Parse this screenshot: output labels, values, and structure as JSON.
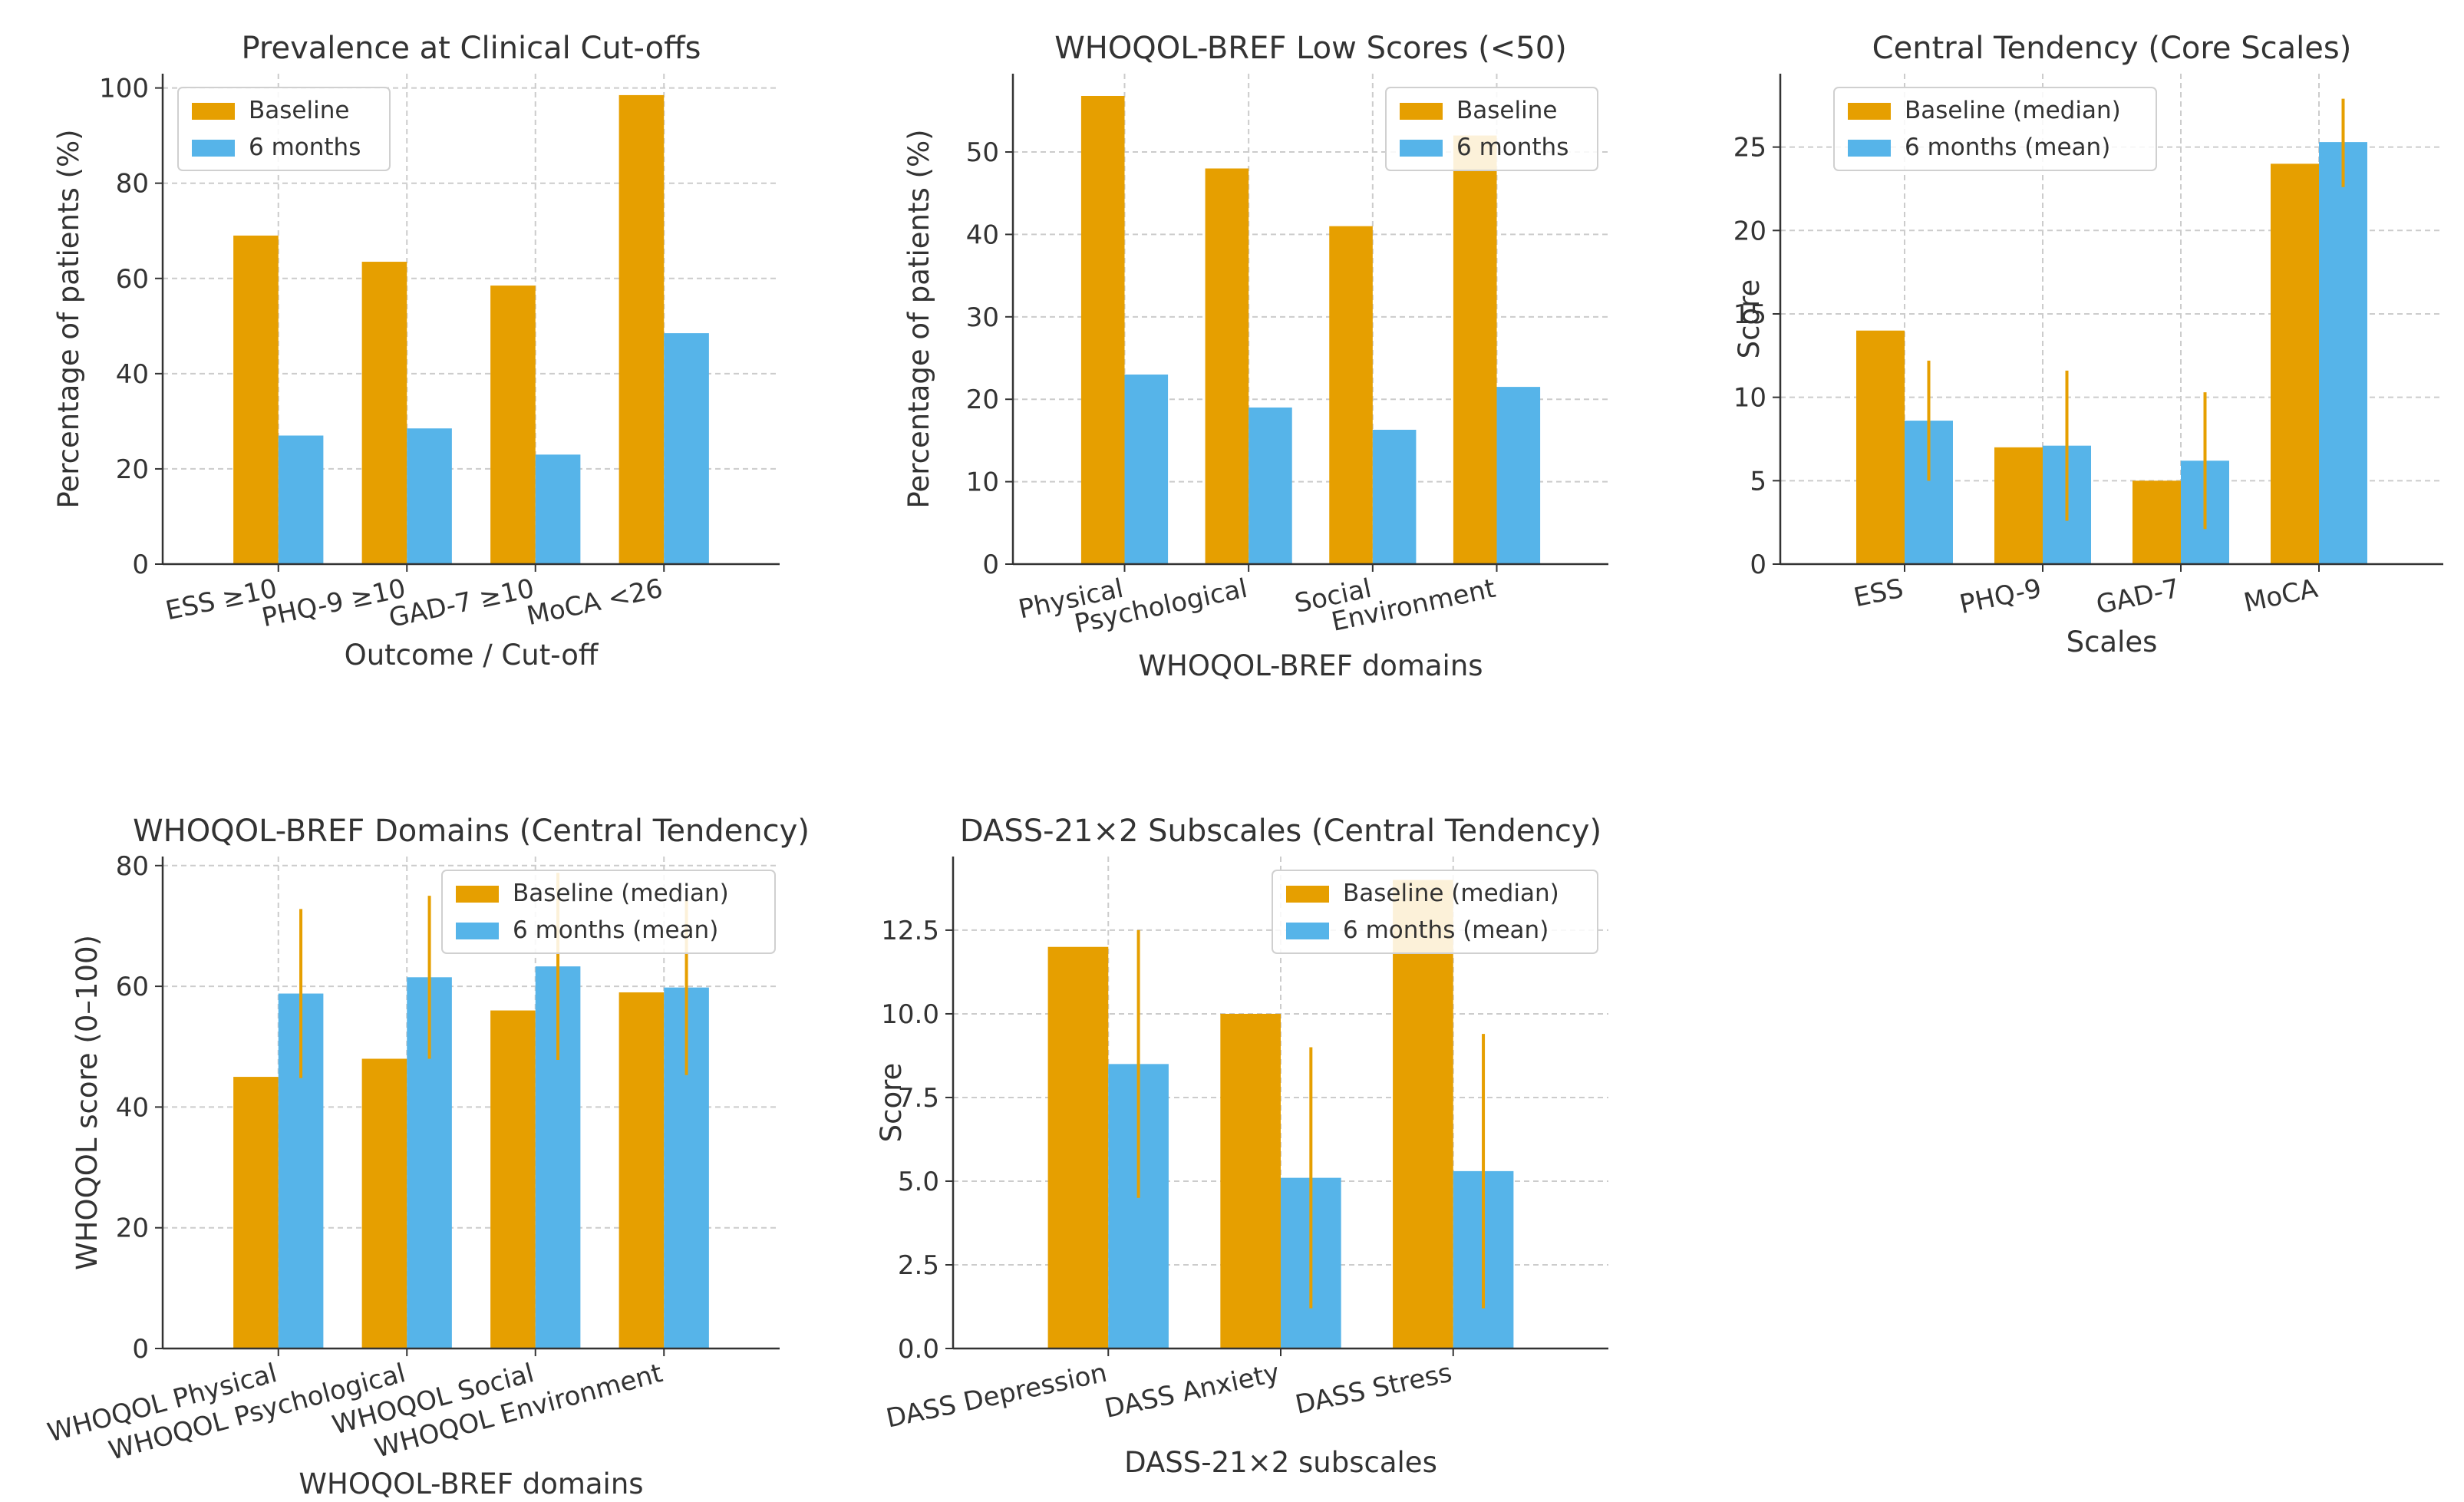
{
  "colors": {
    "baseline": "#E69F00",
    "followup": "#56B4E9",
    "errorbar": "#E69F00",
    "grid": "#cccccc",
    "axis": "#333333"
  },
  "chart_data": [
    {
      "type": "bar",
      "title": "Prevalence at Clinical Cut-offs",
      "xlabel": "Outcome / Cut-off",
      "ylabel": "Percentage of patients (%)",
      "categories": [
        "ESS ≥10",
        "PHQ-9 ≥10",
        "GAD-7 ≥10",
        "MoCA <26"
      ],
      "ylim": [
        0,
        103
      ],
      "yticks": [
        "0",
        "20",
        "40",
        "60",
        "80",
        "100"
      ],
      "grid": true,
      "legend_position": "top-left",
      "series": [
        {
          "name": "Baseline",
          "values": [
            69,
            63.5,
            58.5,
            98.5
          ]
        },
        {
          "name": "6 months",
          "values": [
            27,
            28.5,
            23,
            48.5
          ]
        }
      ]
    },
    {
      "type": "bar",
      "title": "WHOQOL-BREF Low Scores (<50)",
      "xlabel": "WHOQOL-BREF domains",
      "ylabel": "Percentage of patients (%)",
      "categories": [
        "Physical",
        "Psychological",
        "Social",
        "Environment"
      ],
      "ylim": [
        0,
        59.5
      ],
      "yticks": [
        "0",
        "10",
        "20",
        "30",
        "40",
        "50"
      ],
      "grid": true,
      "legend_position": "top-right",
      "series": [
        {
          "name": "Baseline",
          "values": [
            56.8,
            48,
            41,
            52
          ]
        },
        {
          "name": "6 months",
          "values": [
            23,
            19,
            16.3,
            21.5
          ]
        }
      ]
    },
    {
      "type": "bar",
      "title": "Central Tendency (Core Scales)",
      "xlabel": "Scales",
      "ylabel": "Score",
      "categories": [
        "ESS",
        "PHQ-9",
        "GAD-7",
        "MoCA"
      ],
      "ylim": [
        0,
        29.4
      ],
      "yticks": [
        "0",
        "5",
        "10",
        "15",
        "20",
        "25"
      ],
      "grid": true,
      "legend_position": "top-left",
      "series": [
        {
          "name": "Baseline (median)",
          "values": [
            14,
            7,
            5,
            24
          ]
        },
        {
          "name": "6 months (mean)",
          "values": [
            8.6,
            7.1,
            6.2,
            25.3
          ],
          "error_low": [
            5,
            2.6,
            2.1,
            22.6
          ],
          "error_high": [
            12.2,
            11.6,
            10.3,
            27.9
          ]
        }
      ]
    },
    {
      "type": "bar",
      "title": "WHOQOL-BREF Domains (Central Tendency)",
      "xlabel": "WHOQOL-BREF domains",
      "ylabel": "WHOQOL score (0–100)",
      "categories": [
        "WHOQOL Physical",
        "WHOQOL Psychological",
        "WHOQOL Social",
        "WHOQOL Environment"
      ],
      "ylim": [
        0,
        81.5
      ],
      "yticks": [
        "0",
        "20",
        "40",
        "60",
        "80"
      ],
      "grid": true,
      "legend_position": "top-right",
      "series": [
        {
          "name": "Baseline (median)",
          "values": [
            45,
            48,
            56,
            59
          ]
        },
        {
          "name": "6 months (mean)",
          "values": [
            58.8,
            61.5,
            63.3,
            59.8
          ],
          "error_low": [
            44.8,
            48,
            47.8,
            45.3
          ],
          "error_high": [
            72.8,
            75,
            78.8,
            74.3
          ]
        }
      ]
    },
    {
      "type": "bar",
      "title": "DASS-21×2 Subscales (Central Tendency)",
      "xlabel": "DASS-21×2 subscales",
      "ylabel": "Score",
      "categories": [
        "DASS Depression",
        "DASS Anxiety",
        "DASS Stress"
      ],
      "ylim": [
        0,
        14.7
      ],
      "yticks": [
        "0.0",
        "2.5",
        "5.0",
        "7.5",
        "10.0",
        "12.5"
      ],
      "grid": true,
      "legend_position": "top-right",
      "series": [
        {
          "name": "Baseline (median)",
          "values": [
            12,
            10,
            14
          ]
        },
        {
          "name": "6 months (mean)",
          "values": [
            8.5,
            5.1,
            5.3
          ],
          "error_low": [
            4.5,
            1.2,
            1.2
          ],
          "error_high": [
            12.5,
            9,
            9.4
          ]
        }
      ]
    }
  ]
}
